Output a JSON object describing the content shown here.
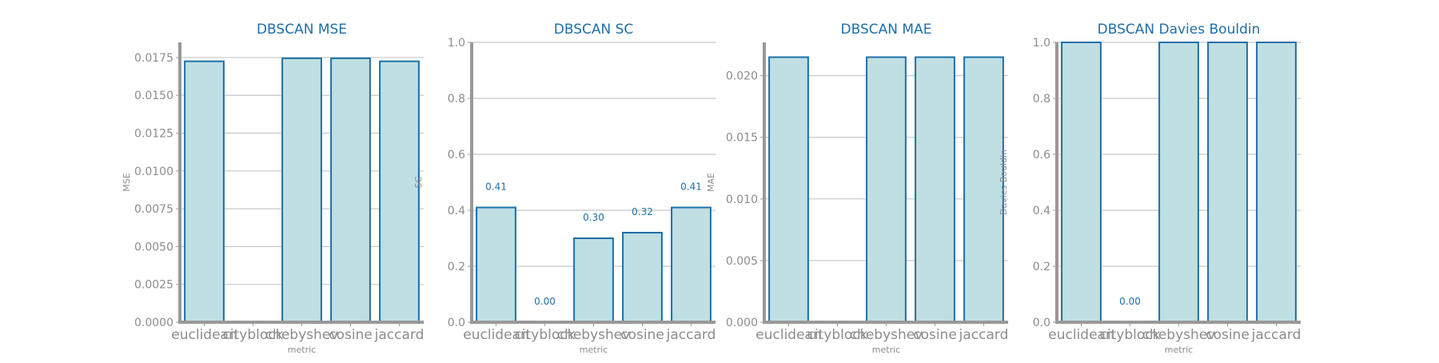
{
  "chart_data": [
    {
      "type": "bar",
      "title": "DBSCAN MSE",
      "xlabel": "metric",
      "ylabel": "MSE",
      "categories": [
        "euclidean",
        "cityblock",
        "chebyshev",
        "cosine",
        "jaccard"
      ],
      "values": [
        0.01725,
        null,
        0.01745,
        0.01745,
        0.01725
      ],
      "value_labels": [
        "",
        "",
        "",
        "",
        ""
      ],
      "ylim": [
        0,
        0.0185
      ],
      "yticks": [
        "0.0000",
        "0.0025",
        "0.0050",
        "0.0075",
        "0.0100",
        "0.0125",
        "0.0150",
        "0.0175"
      ],
      "ytick_values": [
        0,
        0.0025,
        0.005,
        0.0075,
        0.01,
        0.0125,
        0.015,
        0.0175
      ],
      "grid": true
    },
    {
      "type": "bar",
      "title": "DBSCAN SC",
      "xlabel": "metric",
      "ylabel": "SC",
      "categories": [
        "euclidean",
        "cityblock",
        "chebyshev",
        "cosine",
        "jaccard"
      ],
      "values": [
        0.41,
        0.0,
        0.3,
        0.32,
        0.41
      ],
      "value_labels": [
        "0.41",
        "0.00",
        "0.30",
        "0.32",
        "0.41"
      ],
      "ylim": [
        0,
        1.0
      ],
      "yticks": [
        "0.0",
        "0.2",
        "0.4",
        "0.6",
        "0.8",
        "1.0"
      ],
      "ytick_values": [
        0,
        0.2,
        0.4,
        0.6,
        0.8,
        1.0
      ],
      "grid": true
    },
    {
      "type": "bar",
      "title": "DBSCAN MAE",
      "xlabel": "metric",
      "ylabel": "MAE",
      "categories": [
        "euclidean",
        "cityblock",
        "chebyshev",
        "cosine",
        "jaccard"
      ],
      "values": [
        0.0215,
        null,
        0.0215,
        0.0215,
        0.0215
      ],
      "value_labels": [
        "",
        "",
        "",
        "",
        ""
      ],
      "ylim": [
        0,
        0.0227
      ],
      "yticks": [
        "0.000",
        "0.005",
        "0.010",
        "0.015",
        "0.020"
      ],
      "ytick_values": [
        0,
        0.005,
        0.01,
        0.015,
        0.02
      ],
      "grid": true
    },
    {
      "type": "bar",
      "title": "DBSCAN Davies Bouldin",
      "xlabel": "metric",
      "ylabel": "Davies Bouldin",
      "categories": [
        "euclidean",
        "cityblock",
        "chebyshev",
        "cosine",
        "jaccard"
      ],
      "values": [
        1.0,
        0.0,
        1.0,
        1.0,
        1.0
      ],
      "value_labels": [
        "",
        "0.00",
        "",
        "",
        ""
      ],
      "ylim": [
        0,
        1.0
      ],
      "yticks": [
        "0.0",
        "0.2",
        "0.4",
        "0.6",
        "0.8",
        "1.0"
      ],
      "ytick_values": [
        0,
        0.2,
        0.4,
        0.6,
        0.8,
        1.0
      ],
      "grid": true
    }
  ],
  "colors": {
    "title": "#1f6fa8",
    "bar_fill": "#bfdfe3",
    "bar_edge": "#1f6fa8",
    "value_label": "#1f6fa8",
    "axis": "#999999",
    "grid": "#c8c8c8",
    "tick_label": "#8c8c8c"
  }
}
